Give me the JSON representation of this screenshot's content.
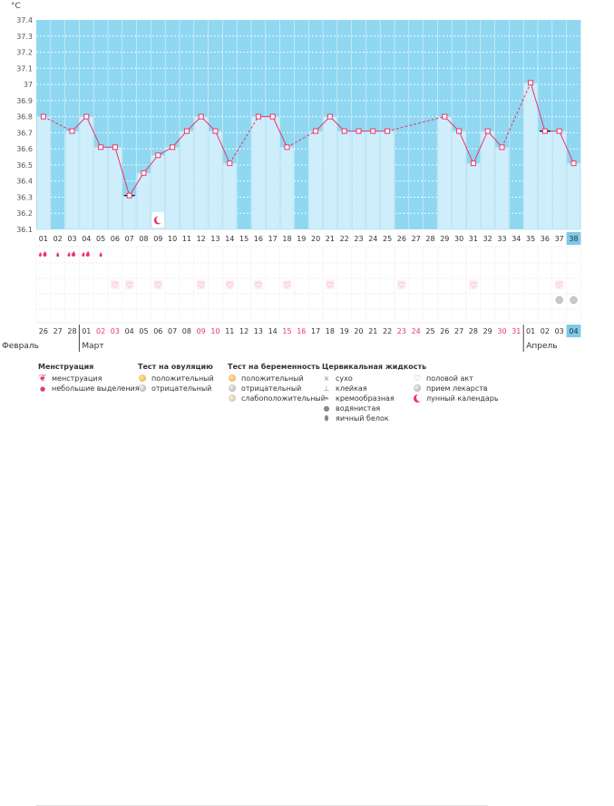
{
  "chart_data": {
    "type": "line",
    "ylabel": "°C",
    "ylim": [
      36.1,
      37.4
    ],
    "y_ticks": [
      "37.4",
      "37.3",
      "37.2",
      "37.1",
      "37",
      "36.9",
      "36.8",
      "36.7",
      "36.6",
      "36.5",
      "36.4",
      "36.3",
      "36.2",
      "36.1"
    ],
    "cycle_days": [
      "01",
      "02",
      "03",
      "04",
      "05",
      "06",
      "07",
      "08",
      "09",
      "10",
      "11",
      "12",
      "13",
      "14",
      "15",
      "16",
      "17",
      "18",
      "19",
      "20",
      "21",
      "22",
      "23",
      "24",
      "25",
      "26",
      "27",
      "28",
      "29",
      "30",
      "31",
      "32",
      "33",
      "34",
      "35",
      "36",
      "37",
      "38"
    ],
    "temperatures": [
      36.8,
      null,
      36.71,
      36.8,
      36.61,
      36.61,
      36.31,
      36.45,
      36.56,
      36.61,
      36.71,
      36.8,
      36.71,
      36.51,
      null,
      36.8,
      36.8,
      36.61,
      null,
      36.71,
      36.8,
      36.71,
      36.71,
      36.71,
      36.71,
      null,
      null,
      null,
      36.8,
      36.71,
      36.51,
      36.71,
      36.61,
      null,
      37.01,
      36.71,
      36.71,
      36.51
    ],
    "marked_points": [
      7,
      36
    ],
    "ovulation_day": 36,
    "moon_day": 9,
    "menstruation": [
      "big",
      "small",
      "big",
      "big",
      "small",
      "",
      "",
      "",
      "",
      "",
      "",
      "",
      "",
      "",
      "",
      "",
      "",
      "",
      "",
      "",
      "",
      "",
      "",
      "",
      "",
      "",
      "",
      "",
      "",
      "",
      "",
      "",
      "",
      "",
      "",
      "",
      "",
      ""
    ],
    "sex_days": [
      6,
      7,
      9,
      12,
      14,
      16,
      18,
      21,
      26,
      31,
      37
    ],
    "medication_days": [
      37,
      38
    ],
    "dates": [
      "26",
      "27",
      "28",
      "01",
      "02",
      "03",
      "04",
      "05",
      "06",
      "07",
      "08",
      "09",
      "10",
      "11",
      "12",
      "13",
      "14",
      "15",
      "16",
      "17",
      "18",
      "19",
      "20",
      "21",
      "22",
      "23",
      "24",
      "25",
      "26",
      "27",
      "28",
      "29",
      "30",
      "31",
      "01",
      "02",
      "03",
      "04"
    ],
    "date_red": [
      false,
      false,
      false,
      false,
      true,
      true,
      false,
      false,
      false,
      false,
      false,
      true,
      true,
      false,
      false,
      false,
      false,
      true,
      true,
      false,
      false,
      false,
      false,
      false,
      false,
      true,
      true,
      false,
      false,
      false,
      false,
      false,
      true,
      true,
      false,
      false,
      false,
      false
    ],
    "month_breaks": [
      {
        "day": 4,
        "label": "Март"
      },
      {
        "day": 35,
        "label": "Апрель"
      }
    ],
    "first_month_label": "Февраль",
    "current_day": 38,
    "colors": {
      "plot_bg": "#90d7f1",
      "bar": "#cfeefb",
      "bar_edge": "#a6dcef",
      "line": "#e8376b",
      "current": "#7cc9ea"
    }
  },
  "legend": {
    "menstruation": {
      "title": "Менструация",
      "items": [
        {
          "icon": "drop-big-icon",
          "label": "менструация"
        },
        {
          "icon": "drop-small-icon",
          "label": "небольшие выделения"
        }
      ]
    },
    "ovulation_test": {
      "title": "Тест на овуляцию",
      "items": [
        {
          "icon": "circle-positive-icon",
          "label": "положительный"
        },
        {
          "icon": "circle-negative-icon",
          "label": "отрицательный"
        }
      ]
    },
    "pregnancy_test": {
      "title": "Тест на беременность",
      "items": [
        {
          "icon": "circle-positive-icon",
          "label": "положительный"
        },
        {
          "icon": "circle-negative-icon",
          "label": "отрицательный"
        },
        {
          "icon": "circle-weak-icon",
          "label": "слабоположительный"
        }
      ]
    },
    "cervical_fluid": {
      "title": "Цервикальная жидкость",
      "items": [
        {
          "icon": "dry-icon",
          "label": "сухо"
        },
        {
          "icon": "sticky-icon",
          "label": "клейкая"
        },
        {
          "icon": "creamy-icon",
          "label": "кремообразная"
        },
        {
          "icon": "watery-icon",
          "label": "водянистая"
        },
        {
          "icon": "egg-white-icon",
          "label": "яичный белок"
        }
      ]
    },
    "other": {
      "items": [
        {
          "icon": "heart-icon",
          "label": "половой акт"
        },
        {
          "icon": "pill-icon",
          "label": "прием лекарств"
        },
        {
          "icon": "moon-icon",
          "label": "лунный календарь"
        }
      ]
    }
  }
}
